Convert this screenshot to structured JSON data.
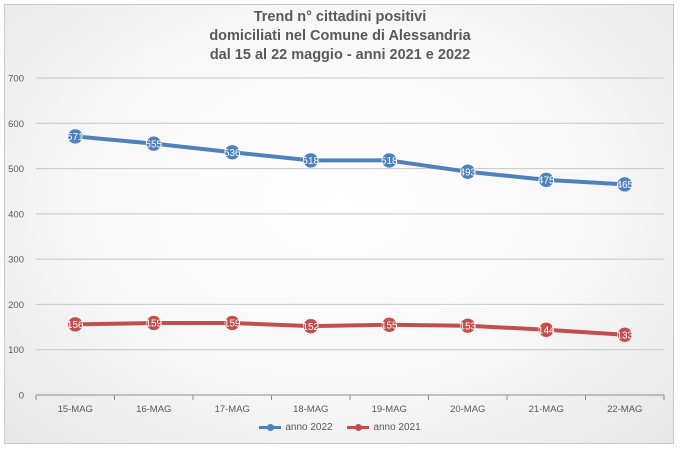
{
  "title_lines": [
    "Trend n° cittadini positivi",
    "domiciliati nel Comune di Alessandria",
    "dal 15 al 22 maggio - anni 2021 e 2022"
  ],
  "chart_data": {
    "type": "line",
    "title": "Trend n° cittadini positivi domiciliati nel Comune di Alessandria dal 15 al 22 maggio - anni 2021 e 2022",
    "categories": [
      "15-MAG",
      "16-MAG",
      "17-MAG",
      "18-MAG",
      "19-MAG",
      "20-MAG",
      "21-MAG",
      "22-MAG"
    ],
    "series": [
      {
        "name": "anno 2022",
        "values": [
          571,
          555,
          536,
          518,
          518,
          493,
          475,
          465
        ],
        "labels": [
          "571",
          "555",
          "536",
          "518",
          "518",
          "493",
          "475",
          "465"
        ],
        "color": "#4f81bd"
      },
      {
        "name": "anno 2021",
        "values": [
          156,
          159,
          159,
          152,
          155,
          153,
          144,
          133
        ],
        "labels": [
          "156",
          "159",
          "159",
          "152",
          "155",
          "153",
          "144",
          "133"
        ],
        "color": "#c0504d"
      }
    ],
    "ylim": [
      0,
      700
    ],
    "yticks": [
      "0",
      "100",
      "200",
      "300",
      "400",
      "500",
      "600",
      "700"
    ],
    "xlabel": "",
    "ylabel": "",
    "grid": true,
    "legend_position": "bottom"
  }
}
